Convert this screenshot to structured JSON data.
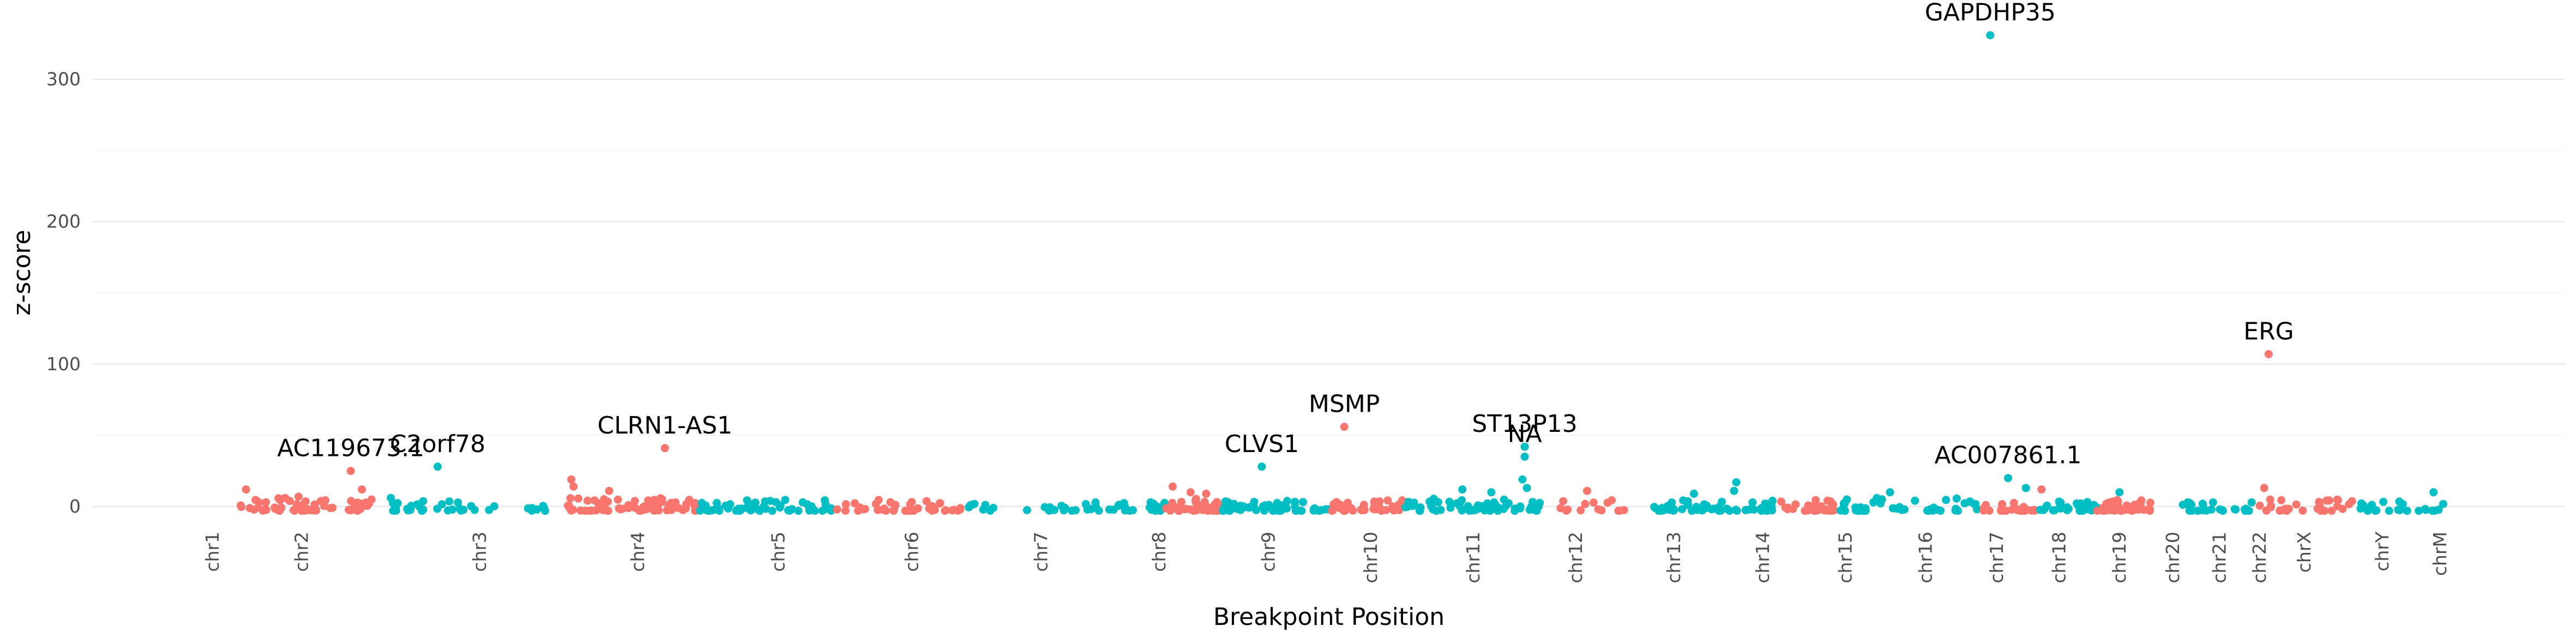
{
  "chart_data": {
    "type": "scatter",
    "title": "",
    "xlabel": "Breakpoint Position",
    "ylabel": "z-score",
    "ylim": [
      -10,
      350
    ],
    "y_ticks": [
      0,
      100,
      200,
      300
    ],
    "grid": true,
    "legend": "none",
    "colors": {
      "odd": "#F8766D",
      "even": "#00BFC4",
      "label": "#000000",
      "tick": "#4d4d4d",
      "grid": "#ebebeb"
    },
    "chromosomes": [
      {
        "name": "chr1",
        "pos": 0.0,
        "color": "odd"
      },
      {
        "name": "chr2",
        "pos": 4.0,
        "color": "even"
      },
      {
        "name": "chr3",
        "pos": 12.0,
        "color": "odd"
      },
      {
        "name": "chr4",
        "pos": 19.1,
        "color": "even"
      },
      {
        "name": "chr5",
        "pos": 25.4,
        "color": "odd"
      },
      {
        "name": "chr6",
        "pos": 31.4,
        "color": "even"
      },
      {
        "name": "chr7",
        "pos": 37.2,
        "color": "odd"
      },
      {
        "name": "chr8",
        "pos": 42.5,
        "color": "even"
      },
      {
        "name": "chr9",
        "pos": 47.4,
        "color": "odd"
      },
      {
        "name": "chr10",
        "pos": 52.0,
        "color": "even"
      },
      {
        "name": "chr11",
        "pos": 56.6,
        "color": "odd"
      },
      {
        "name": "chr12",
        "pos": 61.2,
        "color": "even"
      },
      {
        "name": "chr13",
        "pos": 65.6,
        "color": "odd"
      },
      {
        "name": "chr14",
        "pos": 69.6,
        "color": "even"
      },
      {
        "name": "chr15",
        "pos": 73.3,
        "color": "odd"
      },
      {
        "name": "chr16",
        "pos": 76.9,
        "color": "even"
      },
      {
        "name": "chr17",
        "pos": 80.1,
        "color": "odd"
      },
      {
        "name": "chr18",
        "pos": 82.9,
        "color": "even"
      },
      {
        "name": "chr19",
        "pos": 85.6,
        "color": "odd"
      },
      {
        "name": "chr20",
        "pos": 88.0,
        "color": "even"
      },
      {
        "name": "chr21",
        "pos": 90.1,
        "color": "odd"
      },
      {
        "name": "chr22",
        "pos": 91.9,
        "color": "even"
      },
      {
        "name": "chrX",
        "pos": 93.9,
        "color": "odd"
      },
      {
        "name": "chrY",
        "pos": 97.4,
        "color": "even"
      },
      {
        "name": "chrM",
        "pos": 100.0,
        "color": "odd"
      }
    ],
    "segments": [
      {
        "start": 1.2,
        "end": 5.4,
        "color": "odd",
        "count": 48,
        "max": 7
      },
      {
        "start": 6.1,
        "end": 7.4,
        "color": "odd",
        "count": 16,
        "max": 5
      },
      {
        "start": 7.6,
        "end": 12.8,
        "color": "even",
        "count": 28,
        "max": 4
      },
      {
        "start": 14.0,
        "end": 15.2,
        "color": "even",
        "count": 8,
        "max": 5
      },
      {
        "start": 15.8,
        "end": 21.8,
        "color": "odd",
        "count": 70,
        "max": 6
      },
      {
        "start": 21.8,
        "end": 28.0,
        "color": "even",
        "count": 55,
        "max": 5
      },
      {
        "start": 28.0,
        "end": 33.8,
        "color": "odd",
        "count": 42,
        "max": 5
      },
      {
        "start": 33.8,
        "end": 35.2,
        "color": "even",
        "count": 8,
        "max": 3
      },
      {
        "start": 36.5,
        "end": 42.8,
        "color": "even",
        "count": 40,
        "max": 3
      },
      {
        "start": 42.8,
        "end": 45.3,
        "color": "odd",
        "count": 40,
        "max": 6
      },
      {
        "start": 45.3,
        "end": 50.2,
        "color": "even",
        "count": 62,
        "max": 5
      },
      {
        "start": 50.2,
        "end": 53.5,
        "color": "odd",
        "count": 35,
        "max": 5
      },
      {
        "start": 53.5,
        "end": 59.8,
        "color": "even",
        "count": 70,
        "max": 6
      },
      {
        "start": 60.5,
        "end": 64.4,
        "color": "odd",
        "count": 14,
        "max": 5
      },
      {
        "start": 64.6,
        "end": 70.2,
        "color": "even",
        "count": 55,
        "max": 5
      },
      {
        "start": 70.2,
        "end": 73.0,
        "color": "odd",
        "count": 26,
        "max": 5
      },
      {
        "start": 73.0,
        "end": 79.3,
        "color": "even",
        "count": 45,
        "max": 6
      },
      {
        "start": 79.3,
        "end": 81.8,
        "color": "odd",
        "count": 25,
        "max": 3
      },
      {
        "start": 82.0,
        "end": 84.6,
        "color": "even",
        "count": 30,
        "max": 5
      },
      {
        "start": 84.6,
        "end": 87.0,
        "color": "odd",
        "count": 45,
        "max": 6
      },
      {
        "start": 88.3,
        "end": 91.6,
        "color": "even",
        "count": 25,
        "max": 5
      },
      {
        "start": 91.6,
        "end": 96.2,
        "color": "odd",
        "count": 28,
        "max": 5
      },
      {
        "start": 96.3,
        "end": 100.5,
        "color": "even",
        "count": 22,
        "max": 4
      }
    ],
    "highlighted_points": [
      {
        "x": 1.5,
        "y": 12,
        "color": "odd"
      },
      {
        "x": 6.2,
        "y": 25,
        "color": "odd"
      },
      {
        "x": 6.7,
        "y": 12,
        "color": "odd"
      },
      {
        "x": 8.0,
        "y": 6,
        "color": "even"
      },
      {
        "x": 10.1,
        "y": 28,
        "color": "even"
      },
      {
        "x": 16.1,
        "y": 19,
        "color": "odd"
      },
      {
        "x": 16.2,
        "y": 14,
        "color": "odd"
      },
      {
        "x": 17.8,
        "y": 11,
        "color": "odd"
      },
      {
        "x": 20.3,
        "y": 41,
        "color": "odd"
      },
      {
        "x": 43.1,
        "y": 14,
        "color": "odd"
      },
      {
        "x": 43.9,
        "y": 10,
        "color": "odd"
      },
      {
        "x": 44.6,
        "y": 9,
        "color": "odd"
      },
      {
        "x": 47.1,
        "y": 28,
        "color": "even"
      },
      {
        "x": 50.8,
        "y": 56,
        "color": "odd"
      },
      {
        "x": 56.1,
        "y": 12,
        "color": "even"
      },
      {
        "x": 57.4,
        "y": 10,
        "color": "even"
      },
      {
        "x": 58.9,
        "y": 42,
        "color": "even"
      },
      {
        "x": 58.9,
        "y": 35,
        "color": "even"
      },
      {
        "x": 58.8,
        "y": 19,
        "color": "even"
      },
      {
        "x": 59.0,
        "y": 13,
        "color": "even"
      },
      {
        "x": 61.7,
        "y": 11,
        "color": "odd"
      },
      {
        "x": 66.5,
        "y": 9,
        "color": "even"
      },
      {
        "x": 68.4,
        "y": 17,
        "color": "even"
      },
      {
        "x": 68.3,
        "y": 11,
        "color": "even"
      },
      {
        "x": 75.3,
        "y": 10,
        "color": "even"
      },
      {
        "x": 79.8,
        "y": 331,
        "color": "even"
      },
      {
        "x": 80.6,
        "y": 20,
        "color": "even"
      },
      {
        "x": 81.4,
        "y": 13,
        "color": "even"
      },
      {
        "x": 82.1,
        "y": 12,
        "color": "odd"
      },
      {
        "x": 85.6,
        "y": 10,
        "color": "even"
      },
      {
        "x": 92.1,
        "y": 13,
        "color": "odd"
      },
      {
        "x": 92.3,
        "y": 107,
        "color": "odd"
      },
      {
        "x": 99.7,
        "y": 10,
        "color": "even"
      }
    ],
    "annotations": [
      {
        "text": "GAPDHP35",
        "x": 79.8,
        "y": 331
      },
      {
        "text": "ERG",
        "x": 92.3,
        "y": 107
      },
      {
        "text": "MSMP",
        "x": 50.8,
        "y": 56
      },
      {
        "text": "ST13P13",
        "x": 58.9,
        "y": 42
      },
      {
        "text": "NA",
        "x": 58.9,
        "y": 35
      },
      {
        "text": "CLRN1-AS1",
        "x": 20.3,
        "y": 41
      },
      {
        "text": "CLVS1",
        "x": 47.1,
        "y": 28
      },
      {
        "text": "C2orf78",
        "x": 10.1,
        "y": 28
      },
      {
        "text": "AC119673.1",
        "x": 6.2,
        "y": 25
      },
      {
        "text": "AC007861.1",
        "x": 80.6,
        "y": 20
      }
    ]
  }
}
